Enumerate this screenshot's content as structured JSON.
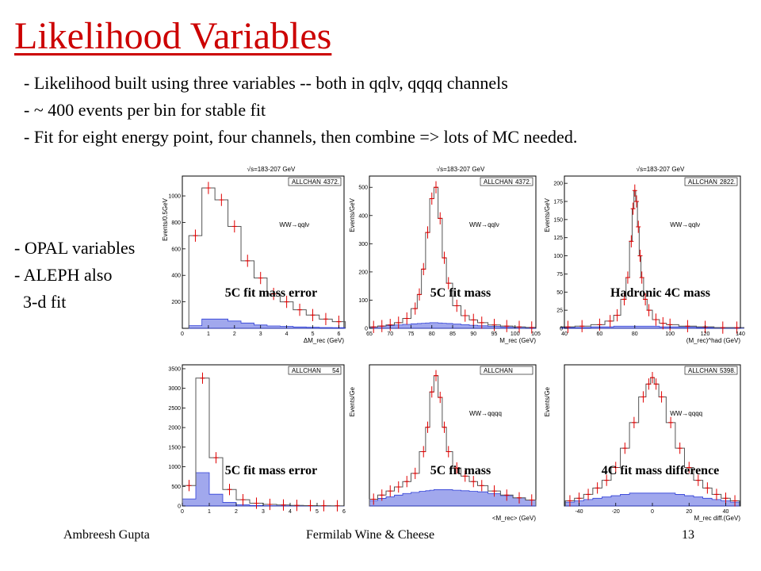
{
  "title": "Likelihood Variables",
  "bullets": [
    "- Likelihood built using three variables  -- both in qqlv, qqqq channels",
    "- ~ 400 events per bin for stable fit",
    "- Fit for eight energy point,  four channels, then combine => lots of MC needed."
  ],
  "side": [
    "- OPAL variables",
    "- ALEPH also",
    "3-d fit"
  ],
  "colors": {
    "title": "#cc0000",
    "hist_line": "#555555",
    "data_marker": "#e00000",
    "fill": "#2f3fd8"
  },
  "plots": [
    {
      "energy": "√s=183-207 GeV",
      "tag": "ALLCHAN",
      "entries": "4372.",
      "channel": "WW→qqlν",
      "ylabel": "Events/0.5GeV",
      "xlabel": "ΔM_rec (GeV)",
      "label": "5C fit mass error",
      "chart_data": {
        "type": "bar",
        "x": [
          0.5,
          1,
          1.5,
          2,
          2.5,
          3,
          3.5,
          4,
          4.5,
          5,
          5.5,
          6
        ],
        "values": [
          700,
          1060,
          970,
          770,
          510,
          380,
          260,
          200,
          140,
          100,
          70,
          50
        ],
        "background": [
          20,
          70,
          70,
          55,
          40,
          25,
          18,
          15,
          10,
          8,
          6,
          5
        ],
        "xlim": [
          0,
          6.2
        ],
        "ylim": [
          0,
          1150
        ],
        "yticks": [
          200,
          400,
          600,
          800,
          1000
        ],
        "xticks": [
          0,
          1,
          2,
          3,
          4,
          5,
          6
        ]
      }
    },
    {
      "energy": "√s=183-207 GeV",
      "tag": "ALLCHAN",
      "entries": "4372.",
      "channel": "WW→qqlν",
      "ylabel": "Events/GeV",
      "xlabel": "M_rec (GeV)",
      "label": "5C fit mass",
      "chart_data": {
        "type": "line",
        "x": [
          66,
          68,
          70,
          72,
          74,
          76,
          77,
          78,
          79,
          80,
          81,
          82,
          83,
          84,
          86,
          88,
          90,
          92,
          95,
          98,
          101,
          104
        ],
        "values": [
          5,
          8,
          12,
          20,
          35,
          70,
          120,
          210,
          340,
          460,
          500,
          390,
          250,
          160,
          80,
          45,
          30,
          20,
          12,
          8,
          5,
          3
        ],
        "background": [
          5,
          8,
          10,
          12,
          14,
          16,
          17,
          18,
          19,
          20,
          20,
          19,
          18,
          17,
          15,
          13,
          11,
          9,
          7,
          5,
          4,
          3
        ],
        "xlim": [
          65,
          105
        ],
        "ylim": [
          0,
          540
        ],
        "yticks": [
          0,
          100,
          200,
          300,
          400,
          500
        ],
        "xticks": [
          65,
          70,
          75,
          80,
          85,
          90,
          95,
          100,
          105
        ]
      }
    },
    {
      "energy": "√s=183-207 GeV",
      "tag": "ALLCHAN",
      "entries": "2822.",
      "channel": "WW→qqlν",
      "ylabel": "Events/GeV",
      "xlabel": "(M_rec)^had (GeV)",
      "label": "Hadronic 4C mass",
      "chart_data": {
        "type": "line",
        "x": [
          42,
          50,
          60,
          66,
          70,
          74,
          76,
          78,
          79,
          80,
          81,
          82,
          83,
          84,
          86,
          88,
          92,
          96,
          100,
          110,
          120,
          130,
          138
        ],
        "values": [
          2,
          3,
          5,
          10,
          18,
          40,
          70,
          120,
          165,
          190,
          175,
          140,
          100,
          70,
          40,
          25,
          12,
          7,
          5,
          3,
          2,
          1,
          1
        ],
        "background": [
          1,
          1,
          2,
          2,
          3,
          3,
          3,
          3,
          3,
          3,
          3,
          3,
          3,
          3,
          3,
          3,
          3,
          2,
          2,
          2,
          1,
          1,
          1
        ],
        "xlim": [
          40,
          140
        ],
        "ylim": [
          0,
          210
        ],
        "yticks": [
          0,
          25,
          50,
          75,
          100,
          125,
          150,
          175,
          200
        ],
        "xticks": [
          40,
          60,
          80,
          100,
          120,
          140
        ]
      }
    },
    {
      "energy": "",
      "tag": "ALLCHAN",
      "entries": "54",
      "channel": "",
      "ylabel": "",
      "xlabel": "",
      "label": "5C fit mass error",
      "chart_data": {
        "type": "bar",
        "x": [
          0.25,
          0.75,
          1.25,
          1.75,
          2.25,
          2.75,
          3.25,
          3.75,
          4.25,
          4.75,
          5.25,
          5.75
        ],
        "values": [
          520,
          3260,
          1230,
          420,
          160,
          70,
          40,
          25,
          15,
          10,
          8,
          5
        ],
        "background": [
          180,
          850,
          300,
          90,
          30,
          12,
          8,
          5,
          3,
          2,
          1,
          1
        ],
        "xlim": [
          0,
          6
        ],
        "ylim": [
          0,
          3600
        ],
        "yticks": [
          0,
          500,
          1000,
          1500,
          2000,
          2500,
          3000,
          3500
        ],
        "xticks": [
          0,
          1,
          2,
          3,
          4,
          5,
          6
        ]
      }
    },
    {
      "energy": "",
      "tag": "ALLCHAN",
      "entries": "",
      "channel": "WW→qqqq",
      "ylabel": "Events/Ge",
      "xlabel": "<M_rec> (GeV)",
      "label": "5C fit mass",
      "chart_data": {
        "type": "line",
        "x": [
          66,
          68,
          70,
          72,
          74,
          76,
          78,
          79,
          80,
          81,
          82,
          83,
          84,
          86,
          88,
          90,
          92,
          95,
          98,
          101,
          104
        ],
        "values": [
          25,
          40,
          55,
          70,
          90,
          120,
          200,
          290,
          420,
          480,
          400,
          290,
          200,
          140,
          110,
          90,
          75,
          55,
          40,
          30,
          22
        ],
        "background": [
          20,
          28,
          34,
          40,
          46,
          50,
          54,
          56,
          58,
          60,
          60,
          60,
          60,
          58,
          56,
          54,
          52,
          46,
          38,
          30,
          22
        ],
        "xlim": [
          65,
          105
        ],
        "ylim": [
          0,
          520
        ],
        "yticks": [],
        "xticks": []
      }
    },
    {
      "energy": "",
      "tag": "ALLCHAN",
      "entries": "5398.",
      "channel": "WW→qqqq",
      "ylabel": "Events/Ge",
      "xlabel": "M_rec diff.(GeV)",
      "label": "4C fit mass difference",
      "chart_data": {
        "type": "line",
        "x": [
          -45,
          -40,
          -35,
          -30,
          -25,
          -20,
          -15,
          -10,
          -5,
          -2,
          0,
          2,
          5,
          10,
          15,
          20,
          25,
          30,
          35,
          40,
          45
        ],
        "values": [
          4,
          6,
          9,
          14,
          20,
          30,
          45,
          65,
          85,
          95,
          100,
          95,
          85,
          65,
          45,
          30,
          20,
          14,
          9,
          6,
          4
        ],
        "background": [
          3,
          4,
          5,
          6,
          7,
          8,
          9,
          10,
          10,
          10,
          10,
          10,
          10,
          10,
          9,
          8,
          7,
          6,
          5,
          4,
          3
        ],
        "xlim": [
          -48,
          48
        ],
        "ylim": [
          0,
          110
        ],
        "yticks": [],
        "xticks": [
          -40,
          -20,
          0,
          20,
          40
        ]
      }
    }
  ],
  "footer": {
    "left": "Ambreesh Gupta",
    "center": "Fermilab Wine & Cheese",
    "right": "13"
  }
}
